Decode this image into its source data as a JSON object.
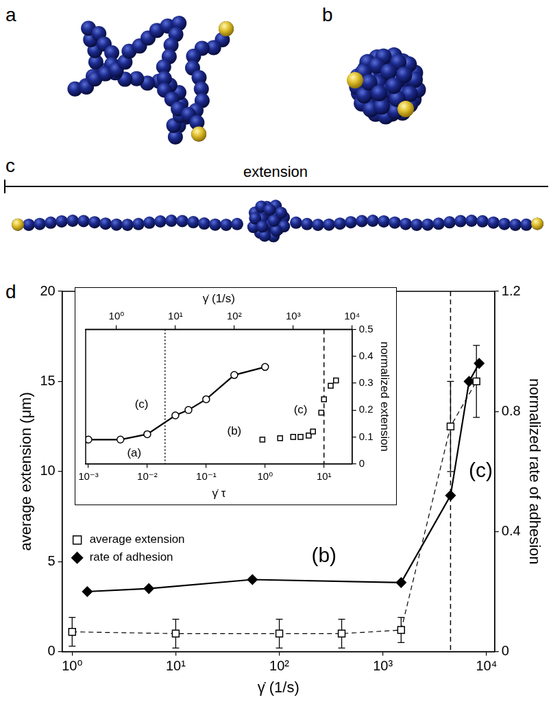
{
  "panel_labels": [
    "a",
    "b",
    "c",
    "d"
  ],
  "extension_label": "extension",
  "chart_data": [
    {
      "type": "scatter",
      "log": "x",
      "grid": false,
      "legend": "lower left",
      "xlabel": "γ̇ (1/s)",
      "ylabel": "average extension (μm)",
      "y2label": "normalized rate of adhesion",
      "xlim": [
        0.8,
        12000
      ],
      "xticks": [
        {
          "value": 1,
          "label": "10⁰"
        },
        {
          "value": 10,
          "label": "10¹"
        },
        {
          "value": 100,
          "label": "10²"
        },
        {
          "value": 1000,
          "label": "10³"
        },
        {
          "value": 10000,
          "label": "10⁴"
        }
      ],
      "ylim": [
        0,
        20
      ],
      "yticks": [
        0,
        5,
        10,
        15,
        20
      ],
      "y2lim": [
        0,
        1.2
      ],
      "y2ticks": [
        0,
        0.4,
        0.8,
        1.2
      ],
      "series": [
        {
          "name": "average extension",
          "color": "#000000",
          "marker": "open square",
          "line_style": "dashed",
          "x": [
            1,
            10,
            100,
            400,
            1500,
            4500,
            8000
          ],
          "values": [
            1.1,
            1.0,
            1.0,
            1.0,
            1.2,
            12.5,
            15.0
          ],
          "errors": [
            0.8,
            0.8,
            0.8,
            0.8,
            0.7,
            2.5,
            2.0
          ]
        },
        {
          "name": "rate of adhesion",
          "color": "#000000",
          "marker": "filled diamond",
          "line_style": "solid",
          "axis": "y2",
          "x": [
            1.4,
            5.5,
            55,
            1500,
            4500,
            6800,
            8500
          ],
          "values": [
            0.2,
            0.21,
            0.24,
            0.23,
            0.52,
            0.9,
            0.96
          ]
        }
      ],
      "reference_lines": [
        {
          "x": 4500,
          "line_style": "dashed"
        }
      ],
      "annotations": [
        {
          "text": "(b)",
          "x": 270,
          "y": 5.3
        },
        {
          "text": "(c)",
          "x": 8800,
          "y": 10
        }
      ]
    },
    {
      "type": "scatter",
      "log": "x",
      "grid": false,
      "xlabel": "γ̇ τ",
      "x2label": "γ̇ (1/s)",
      "ylabel": "normalized extension",
      "xlim": [
        0.0009,
        30
      ],
      "xticks": [
        {
          "value": 0.001,
          "label": "10⁻³"
        },
        {
          "value": 0.01,
          "label": "10⁻²"
        },
        {
          "value": 0.1,
          "label": "10⁻¹"
        },
        {
          "value": 1,
          "label": "10⁰"
        },
        {
          "value": 10,
          "label": "10¹"
        }
      ],
      "x2lim": [
        0.3,
        10000
      ],
      "x2ticks": [
        {
          "value": 1,
          "label": "10⁰"
        },
        {
          "value": 10,
          "label": "10¹"
        },
        {
          "value": 100,
          "label": "10²"
        },
        {
          "value": 1000,
          "label": "10³"
        },
        {
          "value": 10000,
          "label": "10⁴"
        }
      ],
      "ylim": [
        0,
        0.5
      ],
      "yticks": [
        0,
        0.1,
        0.2,
        0.3,
        0.4,
        0.5
      ],
      "series": [
        {
          "color": "#000000",
          "marker": "open circle",
          "line_style": "solid",
          "x": [
            0.001,
            0.0035,
            0.01,
            0.03,
            0.05,
            0.1,
            0.3,
            1
          ],
          "values": [
            0.09,
            0.09,
            0.11,
            0.18,
            0.2,
            0.24,
            0.33,
            0.36
          ]
        },
        {
          "color": "#000000",
          "marker": "open square",
          "line_style": "none",
          "x": [
            0.9,
            1.8,
            3,
            4,
            5.5,
            6.5,
            9,
            10,
            13,
            16
          ],
          "values": [
            0.09,
            0.095,
            0.1,
            0.1,
            0.105,
            0.12,
            0.19,
            0.24,
            0.29,
            0.31
          ]
        }
      ],
      "reference_lines": [
        {
          "x": 0.02,
          "line_style": "dotted"
        },
        {
          "x": 10,
          "line_style": "dashed"
        }
      ],
      "annotations": [
        {
          "text": "(a)",
          "x": 0.006,
          "y": 0.04
        },
        {
          "text": "(c)",
          "x": 0.008,
          "y": 0.22
        },
        {
          "text": "(b)",
          "x": 0.3,
          "y": 0.12
        },
        {
          "text": "(c)",
          "x": 4,
          "y": 0.2
        }
      ]
    }
  ]
}
